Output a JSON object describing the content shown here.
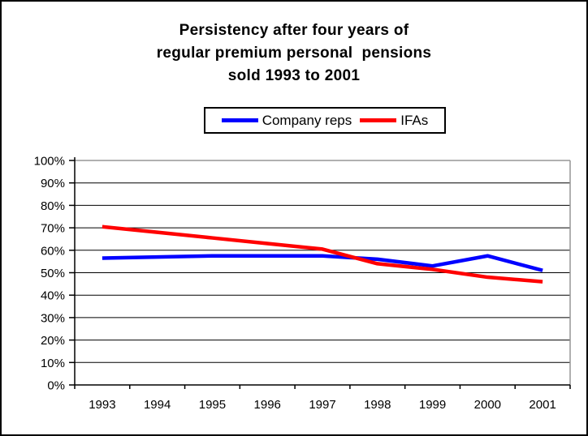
{
  "title": {
    "line1": "Persistency after four years of",
    "line2": "regular premium personal  pensions",
    "line3": "sold 1993 to 2001"
  },
  "legend": {
    "items": [
      {
        "label": "Company reps",
        "color": "#0000ff"
      },
      {
        "label": "IFAs",
        "color": "#ff0000"
      }
    ]
  },
  "chart_data": {
    "type": "line",
    "title": "Persistency after four years of regular premium personal  pensions sold 1993 to 2001",
    "categories": [
      "1993",
      "1994",
      "1995",
      "1996",
      "1997",
      "1998",
      "1999",
      "2000",
      "2001"
    ],
    "series": [
      {
        "name": "Company reps",
        "color": "#0000ff",
        "values": [
          56.5,
          57,
          57.5,
          57.5,
          57.5,
          56,
          53,
          57.5,
          51
        ]
      },
      {
        "name": "IFAs",
        "color": "#ff0000",
        "values": [
          70.5,
          68,
          65.5,
          63,
          60.5,
          54,
          51.5,
          48,
          46
        ]
      }
    ],
    "xlabel": "",
    "ylabel": "",
    "ylim": [
      0,
      100
    ],
    "y_tick_step": 10,
    "y_tick_labels": [
      "0%",
      "10%",
      "20%",
      "30%",
      "40%",
      "50%",
      "60%",
      "70%",
      "80%",
      "90%",
      "100%"
    ],
    "grid": true,
    "legend_position": "top-center",
    "axis_color": "#000000",
    "grid_color": "#000000",
    "plot_border_color": "#969696",
    "background_color": "#ffffff"
  }
}
